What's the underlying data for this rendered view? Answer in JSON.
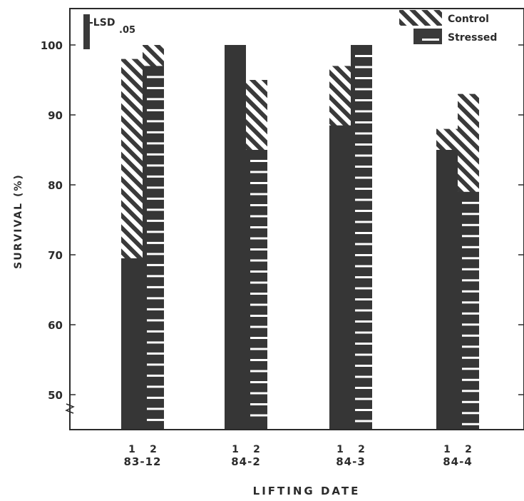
{
  "chart_data": {
    "type": "bar",
    "title": "",
    "xlabel": "LIFTING DATE",
    "ylabel": "SURVIVAL (%)",
    "ylim": [
      45,
      105
    ],
    "yticks": [
      50,
      60,
      70,
      80,
      90,
      100
    ],
    "grid": false,
    "legend_position": "top-right",
    "lsd_label": "-LSD",
    "lsd_subscript": ".05",
    "lsd_value": 5,
    "legend": [
      {
        "name": "Control",
        "pattern": "diagonal-hatch"
      },
      {
        "name": "Stressed",
        "pattern": "horizontal-stripes"
      }
    ],
    "groups": [
      {
        "label": "83-12",
        "bars": [
          {
            "sub": "1",
            "control": 98,
            "stressed": 69.5
          },
          {
            "sub": "2",
            "control": 100,
            "stressed": 97
          }
        ]
      },
      {
        "label": "84-2",
        "bars": [
          {
            "sub": "1",
            "control": 100,
            "stressed": 100
          },
          {
            "sub": "2",
            "control": 95,
            "stressed": 85
          }
        ]
      },
      {
        "label": "84-3",
        "bars": [
          {
            "sub": "1",
            "control": 97,
            "stressed": 88.5
          },
          {
            "sub": "2",
            "control": 100,
            "stressed": 100
          }
        ]
      },
      {
        "label": "84-4",
        "bars": [
          {
            "sub": "1",
            "control": 88,
            "stressed": 85
          },
          {
            "sub": "2",
            "control": 93,
            "stressed": 79
          }
        ]
      }
    ]
  }
}
